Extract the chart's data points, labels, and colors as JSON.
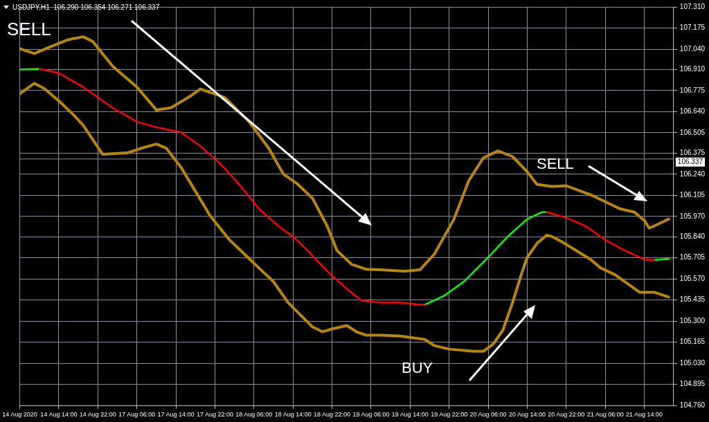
{
  "chart_data": {
    "type": "line",
    "annotations": [
      "USDJPY,H1  106.290 106.354 106.271 106.337",
      "SELL",
      "SELL",
      "BUY"
    ],
    "categories": [
      "14 Aug 2020",
      null,
      null,
      null,
      null,
      null,
      null,
      null,
      "14 Aug 14:00",
      null,
      null,
      null,
      null,
      null,
      null,
      null,
      "14 Aug 22:00",
      null,
      null,
      null,
      null,
      null,
      null,
      null,
      "17 Aug 06:00",
      null,
      null,
      null,
      null,
      null,
      null,
      null,
      "17 Aug 14:00",
      null,
      null,
      null,
      null,
      null,
      null,
      null,
      "17 Aug 22:00",
      null,
      null,
      null,
      null,
      null,
      null,
      null,
      "18 Aug 06:00",
      null,
      null,
      null,
      null,
      null,
      null,
      null,
      "18 Aug 14:00",
      null,
      null,
      null,
      null,
      null,
      null,
      null,
      "18 Aug 22:00",
      null,
      null,
      null,
      null,
      null,
      null,
      null,
      "19 Aug 06:00",
      null,
      null,
      null,
      null,
      null,
      null,
      null,
      "19 Aug 14:00",
      null,
      null,
      null,
      null,
      null,
      null,
      null,
      "19 Aug 22:00",
      null,
      null,
      null,
      null,
      null,
      null,
      null,
      "20 Aug 06:00",
      null,
      null,
      null,
      null,
      null,
      null,
      null,
      "20 Aug 14:00",
      null,
      null,
      null,
      null,
      null,
      null,
      null,
      "20 Aug 22:00",
      null,
      null,
      null,
      null,
      null,
      null,
      null,
      "21 Aug 06:00",
      null,
      null,
      null,
      null,
      null,
      null,
      null,
      "21 Aug 14:00",
      null,
      null,
      null,
      null,
      null
    ],
    "ylim": [
      104.76,
      107.31
    ],
    "yticks": [
      {
        "value": 104.76,
        "label": "104.760"
      },
      {
        "value": 104.895,
        "label": "104.895"
      },
      {
        "value": 105.03,
        "label": "105.030"
      },
      {
        "value": 105.165,
        "label": "105.165"
      },
      {
        "value": 105.3,
        "label": "105.300"
      },
      {
        "value": 105.435,
        "label": "105.435"
      },
      {
        "value": 105.57,
        "label": "105.570"
      },
      {
        "value": 105.705,
        "label": "105.705"
      },
      {
        "value": 105.84,
        "label": "105.840"
      },
      {
        "value": 105.97,
        "label": "105.970"
      },
      {
        "value": 106.105,
        "label": "106.105"
      },
      {
        "value": 106.24,
        "label": "106.240"
      },
      {
        "value": 106.375,
        "label": "106.375"
      },
      {
        "value": 106.505,
        "label": "106.505"
      },
      {
        "value": 106.64,
        "label": "106.640"
      },
      {
        "value": 106.775,
        "label": "106.775"
      },
      {
        "value": 106.91,
        "label": "106.910"
      },
      {
        "value": 107.04,
        "label": "107.040"
      },
      {
        "value": 107.175,
        "label": "107.175"
      },
      {
        "value": 107.31,
        "label": "107.310"
      }
    ],
    "grid": true,
    "marker": "none",
    "line_style": "solid",
    "ref_lines": [
      {
        "axis": "y",
        "value": 106.337,
        "label": "106.337",
        "color": "#8a8f99"
      }
    ],
    "series": [
      {
        "color": "#b8860b",
        "values": [
          107.043,
          null,
          null,
          107.012,
          null,
          null,
          107.052,
          null,
          null,
          null,
          107.101,
          null,
          null,
          107.119,
          null,
          107.088,
          null,
          null,
          null,
          106.932,
          null,
          null,
          null,
          null,
          106.798,
          null,
          null,
          null,
          106.651,
          null,
          null,
          106.665,
          null,
          null,
          null,
          106.74,
          null,
          106.785,
          null,
          null,
          null,
          null,
          106.731,
          null,
          null,
          null,
          null,
          106.576,
          null,
          null,
          null,
          106.407,
          null,
          null,
          106.242,
          null,
          null,
          106.175,
          null,
          null,
          106.086,
          null,
          null,
          105.908,
          null,
          105.752,
          null,
          null,
          105.663,
          null,
          null,
          105.632,
          null,
          null,
          105.628,
          null,
          null,
          null,
          null,
          105.619,
          null,
          null,
          105.628,
          null,
          null,
          105.73,
          null,
          null,
          null,
          105.953,
          null,
          null,
          106.197,
          null,
          null,
          106.344,
          null,
          null,
          106.389,
          null,
          null,
          106.353,
          null,
          null,
          106.255,
          null,
          106.175,
          null,
          null,
          106.162,
          null,
          null,
          106.166,
          null,
          null,
          106.131,
          null,
          106.108,
          null,
          null,
          106.064,
          null,
          null,
          106.019,
          null,
          null,
          105.997,
          null,
          105.944,
          105.895,
          105.908,
          null,
          null,
          105.953
        ]
      },
      {
        "color": "#b8860b",
        "values": [
          106.754,
          null,
          null,
          106.821,
          null,
          106.789,
          null,
          null,
          106.709,
          null,
          null,
          106.62,
          null,
          106.553,
          null,
          null,
          null,
          106.367,
          null,
          null,
          null,
          null,
          106.376,
          null,
          null,
          106.407,
          null,
          null,
          106.433,
          null,
          106.407,
          null,
          null,
          106.286,
          null,
          null,
          106.131,
          null,
          null,
          105.975,
          null,
          null,
          null,
          105.819,
          null,
          null,
          105.73,
          null,
          null,
          105.641,
          null,
          null,
          105.552,
          null,
          null,
          105.419,
          null,
          null,
          null,
          null,
          105.263,
          null,
          105.232,
          null,
          105.25,
          null,
          null,
          105.272,
          null,
          105.232,
          null,
          105.21,
          null,
          null,
          105.21,
          null,
          null,
          null,
          105.205,
          null,
          105.196,
          null,
          null,
          105.183,
          null,
          105.143,
          null,
          null,
          105.121,
          null,
          null,
          null,
          null,
          105.107,
          null,
          105.107,
          null,
          105.152,
          null,
          105.241,
          null,
          105.419,
          null,
          105.619,
          105.708,
          null,
          105.797,
          null,
          105.85,
          105.842,
          null,
          105.81,
          null,
          null,
          105.752,
          null,
          null,
          105.695,
          null,
          105.641,
          null,
          null,
          105.597,
          null,
          null,
          105.53,
          null,
          105.485,
          null,
          null,
          105.485,
          null,
          null,
          105.454
        ]
      },
      {
        "color": "#ff0000",
        "values": [
          null,
          null,
          null,
          null,
          106.914,
          null,
          null,
          null,
          106.887,
          null,
          null,
          null,
          null,
          106.798,
          null,
          null,
          null,
          null,
          null,
          106.665,
          null,
          null,
          null,
          null,
          106.576,
          null,
          null,
          null,
          106.54,
          null,
          null,
          null,
          null,
          106.509,
          null,
          null,
          null,
          106.42,
          null,
          null,
          null,
          106.309,
          null,
          null,
          null,
          106.175,
          null,
          null,
          null,
          106.019,
          null,
          null,
          null,
          105.908,
          null,
          null,
          105.841,
          null,
          null,
          105.752,
          null,
          null,
          null,
          105.619,
          null,
          null,
          null,
          105.508,
          null,
          null,
          105.432,
          null,
          null,
          null,
          105.419,
          null,
          null,
          null,
          105.419,
          null,
          null,
          null,
          105.405,
          105.405,
          null,
          null,
          null,
          null,
          null,
          null,
          null,
          null,
          null,
          null,
          null,
          null,
          null,
          null,
          null,
          null,
          null,
          null,
          null,
          null,
          null,
          null,
          null,
          null,
          105.997,
          null,
          null,
          null,
          105.962,
          null,
          null,
          null,
          105.908,
          null,
          null,
          null,
          105.819,
          null,
          null,
          null,
          105.752,
          null,
          null,
          null,
          105.695,
          null,
          105.69,
          null,
          null,
          null
        ]
      },
      {
        "color": "#00ff00",
        "values": [
          106.909,
          null,
          null,
          null,
          106.914,
          null,
          null,
          null,
          null,
          null,
          null,
          null,
          null,
          null,
          null,
          null,
          null,
          null,
          null,
          null,
          null,
          null,
          null,
          null,
          null,
          null,
          null,
          null,
          null,
          null,
          null,
          null,
          null,
          null,
          null,
          null,
          null,
          null,
          null,
          null,
          null,
          null,
          null,
          null,
          null,
          null,
          null,
          null,
          null,
          null,
          null,
          null,
          null,
          null,
          null,
          null,
          null,
          null,
          null,
          null,
          null,
          null,
          null,
          null,
          null,
          null,
          null,
          null,
          null,
          null,
          null,
          null,
          null,
          null,
          null,
          null,
          null,
          null,
          null,
          null,
          null,
          null,
          null,
          105.405,
          null,
          null,
          null,
          105.463,
          null,
          null,
          null,
          105.552,
          null,
          null,
          null,
          null,
          105.708,
          null,
          null,
          null,
          105.841,
          null,
          null,
          null,
          105.953,
          null,
          null,
          105.997,
          105.997,
          null,
          null,
          null,
          null,
          null,
          null,
          null,
          null,
          null,
          null,
          null,
          null,
          null,
          null,
          null,
          null,
          null,
          null,
          null,
          null,
          null,
          105.69,
          null,
          null,
          105.699
        ]
      }
    ]
  }
}
